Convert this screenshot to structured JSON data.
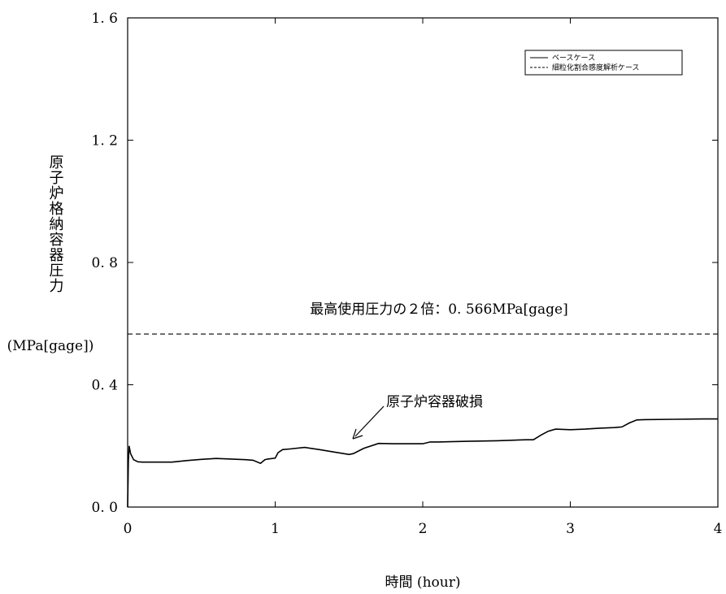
{
  "chart_data": {
    "type": "line",
    "ylabel": "原子炉格納容器圧力",
    "ylabel_unit": "(MPa[gage])",
    "xlabel": "時間 (hour)",
    "xlim": [
      0,
      4
    ],
    "ylim": [
      0,
      1.6
    ],
    "x_ticks": [
      {
        "value": 0,
        "label": "0"
      },
      {
        "value": 1,
        "label": "1"
      },
      {
        "value": 2,
        "label": "2"
      },
      {
        "value": 3,
        "label": "3"
      },
      {
        "value": 4,
        "label": "4"
      }
    ],
    "y_ticks": [
      {
        "value": 0,
        "label": "0. 0"
      },
      {
        "value": 0.4,
        "label": "0. 4"
      },
      {
        "value": 0.8,
        "label": "0. 8"
      },
      {
        "value": 1.2,
        "label": "1. 2"
      },
      {
        "value": 1.6,
        "label": "1. 6"
      }
    ],
    "grid": false,
    "legend_position": "top-right",
    "legend": [
      {
        "label": "ベースケース",
        "style": "solid"
      },
      {
        "label": "細粒化割合感度解析ケース",
        "style": "dashed"
      }
    ],
    "reference_lines": [
      {
        "value": 0.566,
        "label": "最高使用圧力の２倍：0. 566MPa[gage]",
        "style": "dashed"
      }
    ],
    "annotations": [
      {
        "label": "原子炉容器破損",
        "x": 1.5,
        "y": 0.18
      }
    ],
    "series": [
      {
        "style": "solid",
        "color": "#000000",
        "x": [
          0,
          0.005,
          0.01,
          0.02,
          0.04,
          0.07,
          0.1,
          0.2,
          0.3,
          0.4,
          0.5,
          0.6,
          0.7,
          0.8,
          0.85,
          0.9,
          0.93,
          0.95,
          1.0,
          1.02,
          1.05,
          1.1,
          1.2,
          1.3,
          1.4,
          1.5,
          1.53,
          1.6,
          1.7,
          1.8,
          1.9,
          2.0,
          2.05,
          2.1,
          2.3,
          2.5,
          2.7,
          2.75,
          2.8,
          2.85,
          2.9,
          3.0,
          3.1,
          3.2,
          3.3,
          3.35,
          3.4,
          3.45,
          3.5,
          3.7,
          3.9,
          4.0
        ],
        "y": [
          0.0,
          0.15,
          0.2,
          0.175,
          0.155,
          0.148,
          0.147,
          0.147,
          0.147,
          0.152,
          0.156,
          0.159,
          0.157,
          0.155,
          0.153,
          0.143,
          0.155,
          0.157,
          0.16,
          0.178,
          0.188,
          0.19,
          0.195,
          0.188,
          0.18,
          0.172,
          0.175,
          0.192,
          0.208,
          0.207,
          0.207,
          0.207,
          0.213,
          0.213,
          0.215,
          0.217,
          0.22,
          0.22,
          0.235,
          0.248,
          0.255,
          0.253,
          0.255,
          0.258,
          0.26,
          0.262,
          0.275,
          0.285,
          0.286,
          0.287,
          0.288,
          0.288
        ]
      }
    ]
  }
}
